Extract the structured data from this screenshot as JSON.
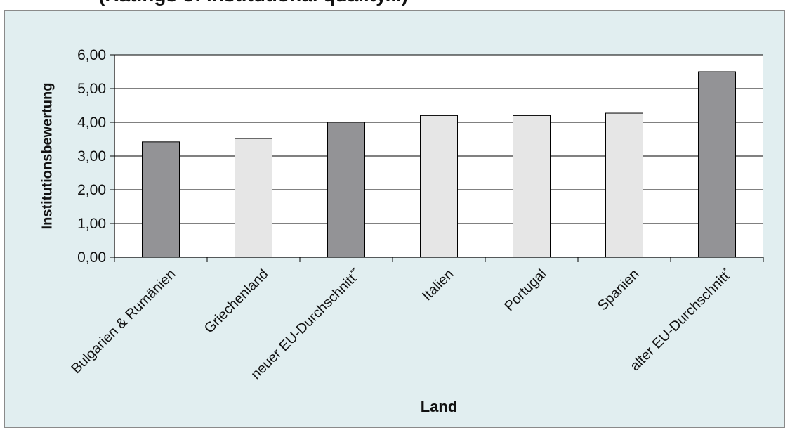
{
  "header": {
    "partial_title": "(Ratings of institutional quality...)"
  },
  "chart_data": {
    "type": "bar",
    "title": "",
    "xlabel": "Land",
    "ylabel": "Institutionsbewertung",
    "categories": [
      "Bulgarien & Rumänien",
      "Griechenland",
      "neuer EU-Durchschnitt**",
      "Italien",
      "Portugal",
      "Spanien",
      "alter EU-Durchschnitt*"
    ],
    "values": [
      3.42,
      3.52,
      4.0,
      4.2,
      4.2,
      4.27,
      5.5
    ],
    "bar_colors": [
      "#939396",
      "#e6e6e6",
      "#939396",
      "#e6e6e6",
      "#e6e6e6",
      "#e6e6e6",
      "#939396"
    ],
    "ylim": [
      0,
      6
    ],
    "yticks": [
      "0,00",
      "1,00",
      "2,00",
      "3,00",
      "4,00",
      "5,00",
      "6,00"
    ],
    "grid": true,
    "legend": "none",
    "colors": {
      "panel_background": "#e1eef0",
      "plot_background": "#ffffff",
      "dark_bar": "#939396",
      "light_bar": "#e6e6e6"
    }
  }
}
